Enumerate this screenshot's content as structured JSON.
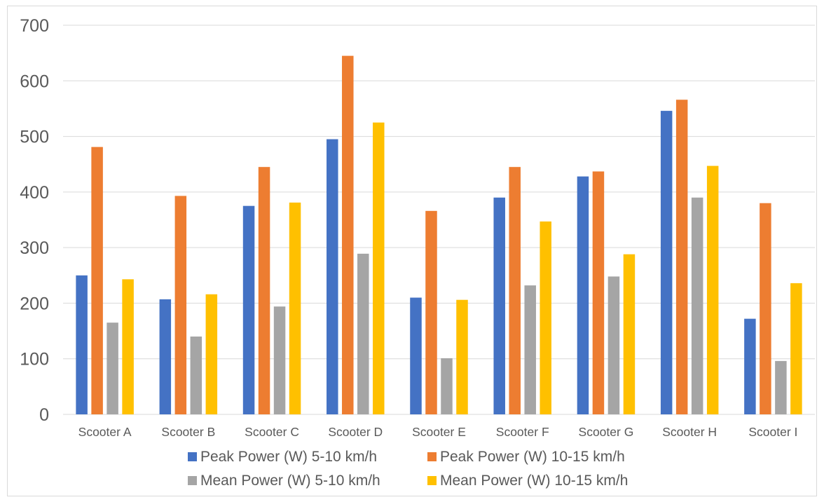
{
  "chart_data": {
    "type": "bar",
    "title": "",
    "xlabel": "",
    "ylabel": "",
    "ylim": [
      0,
      700
    ],
    "yticks": [
      0,
      100,
      200,
      300,
      400,
      500,
      600,
      700
    ],
    "grid": true,
    "legend_position": "bottom",
    "categories": [
      "Scooter A",
      "Scooter B",
      "Scooter C",
      "Scooter D",
      "Scooter E",
      "Scooter F",
      "Scooter G",
      "Scooter H",
      "Scooter I"
    ],
    "series": [
      {
        "name": "Peak Power (W) 5-10 km/h",
        "color": "#4472c4",
        "values": [
          250,
          207,
          375,
          495,
          210,
          390,
          428,
          546,
          172
        ]
      },
      {
        "name": "Peak Power (W) 10-15 km/h",
        "color": "#ed7d31",
        "values": [
          481,
          393,
          445,
          645,
          366,
          445,
          437,
          566,
          380
        ]
      },
      {
        "name": "Mean Power (W) 5-10 km/h",
        "color": "#a5a5a5",
        "values": [
          165,
          140,
          194,
          289,
          101,
          232,
          248,
          390,
          96
        ]
      },
      {
        "name": "Mean Power (W) 10-15 km/h",
        "color": "#ffc000",
        "values": [
          243,
          216,
          381,
          525,
          206,
          347,
          288,
          447,
          236
        ]
      }
    ]
  }
}
